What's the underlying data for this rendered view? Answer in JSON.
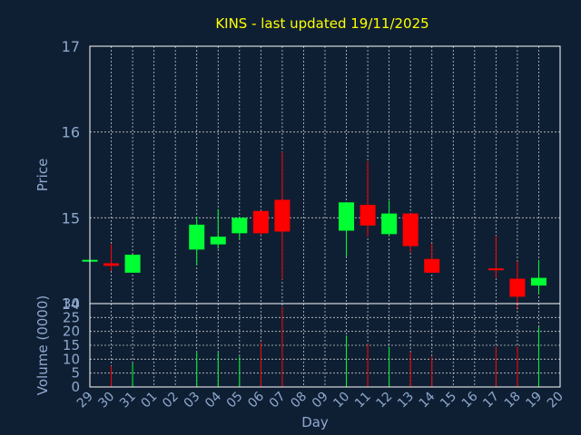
{
  "title": "KINS - last updated 19/11/2025",
  "colors": {
    "background": "#0f1f33",
    "up": "#00ff33",
    "down": "#ff0000",
    "title": "#ffff00",
    "axis_text": "#8ea8cf"
  },
  "chart_data": [
    {
      "type": "candlestick",
      "ylabel": "Price",
      "ylim": [
        14,
        17
      ],
      "yticks": [
        "14",
        "15",
        "16",
        "17"
      ],
      "grid": true,
      "categories": [
        "29",
        "30",
        "31",
        "01",
        "02",
        "03",
        "04",
        "05",
        "06",
        "07",
        "08",
        "09",
        "10",
        "11",
        "12",
        "13",
        "14",
        "15",
        "16",
        "17",
        "18",
        "19",
        "20"
      ],
      "candles": [
        {
          "day": "29",
          "open": 14.51,
          "high": 14.51,
          "low": 14.51,
          "close": 14.51
        },
        {
          "day": "30",
          "open": 14.47,
          "high": 14.69,
          "low": 14.38,
          "close": 14.44
        },
        {
          "day": "31",
          "open": 14.36,
          "high": 14.57,
          "low": 14.36,
          "close": 14.57
        },
        {
          "day": "03",
          "open": 14.63,
          "high": 15.01,
          "low": 14.45,
          "close": 14.92
        },
        {
          "day": "04",
          "open": 14.69,
          "high": 15.1,
          "low": 14.64,
          "close": 14.78
        },
        {
          "day": "05",
          "open": 14.82,
          "high": 15.01,
          "low": 14.75,
          "close": 15.0
        },
        {
          "day": "06",
          "open": 15.08,
          "high": 15.08,
          "low": 14.8,
          "close": 14.82
        },
        {
          "day": "07",
          "open": 15.21,
          "high": 15.77,
          "low": 14.28,
          "close": 14.84
        },
        {
          "day": "10",
          "open": 14.85,
          "high": 15.18,
          "low": 14.55,
          "close": 15.18
        },
        {
          "day": "11",
          "open": 15.15,
          "high": 15.66,
          "low": 14.78,
          "close": 14.91
        },
        {
          "day": "12",
          "open": 14.81,
          "high": 15.2,
          "low": 14.79,
          "close": 15.05
        },
        {
          "day": "13",
          "open": 15.05,
          "high": 15.05,
          "low": 14.6,
          "close": 14.67
        },
        {
          "day": "14",
          "open": 14.52,
          "high": 14.7,
          "low": 14.36,
          "close": 14.36
        },
        {
          "day": "17",
          "open": 14.41,
          "high": 14.79,
          "low": 14.3,
          "close": 14.4
        },
        {
          "day": "18",
          "open": 14.29,
          "high": 14.49,
          "low": 13.93,
          "close": 14.08
        },
        {
          "day": "19",
          "open": 14.21,
          "high": 14.51,
          "low": 14.11,
          "close": 14.3
        }
      ]
    },
    {
      "type": "bar",
      "ylabel": "Volume (0000)",
      "xlabel": "Day",
      "ylim": [
        0,
        30
      ],
      "yticks": [
        "0",
        "5",
        "10",
        "15",
        "20",
        "25",
        "30"
      ],
      "categories": [
        "29",
        "30",
        "31",
        "01",
        "02",
        "03",
        "04",
        "05",
        "06",
        "07",
        "08",
        "09",
        "10",
        "11",
        "12",
        "13",
        "14",
        "15",
        "16",
        "17",
        "18",
        "19",
        "20"
      ],
      "bars": [
        {
          "day": "30",
          "value": 7.5,
          "direction": "down"
        },
        {
          "day": "31",
          "value": 8.5,
          "direction": "up"
        },
        {
          "day": "03",
          "value": 12.5,
          "direction": "up"
        },
        {
          "day": "04",
          "value": 12.5,
          "direction": "up"
        },
        {
          "day": "05",
          "value": 11,
          "direction": "up"
        },
        {
          "day": "06",
          "value": 16,
          "direction": "down"
        },
        {
          "day": "07",
          "value": 29,
          "direction": "down"
        },
        {
          "day": "10",
          "value": 18.5,
          "direction": "up"
        },
        {
          "day": "11",
          "value": 15.5,
          "direction": "down"
        },
        {
          "day": "12",
          "value": 14.5,
          "direction": "up"
        },
        {
          "day": "13",
          "value": 12.5,
          "direction": "down"
        },
        {
          "day": "14",
          "value": 11,
          "direction": "down"
        },
        {
          "day": "17",
          "value": 14.5,
          "direction": "down"
        },
        {
          "day": "18",
          "value": 14.5,
          "direction": "down"
        },
        {
          "day": "19",
          "value": 21.5,
          "direction": "up"
        }
      ]
    }
  ]
}
